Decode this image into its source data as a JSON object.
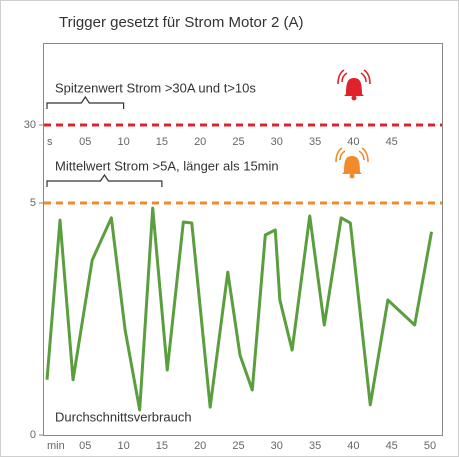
{
  "chart_data": {
    "type": "line",
    "title": "Trigger gesetzt für Strom Motor 2 (A)",
    "xlim": [
      0,
      50
    ],
    "xticks": [
      {
        "value": 0,
        "label": "min"
      },
      {
        "value": 5,
        "label": "05"
      },
      10,
      15,
      20,
      25,
      30,
      35,
      40,
      45,
      50
    ],
    "x2ticks": [
      {
        "value": 0,
        "label": "s"
      },
      {
        "value": 5,
        "label": "05"
      },
      10,
      15,
      20,
      25,
      30,
      35,
      40,
      45
    ],
    "ylim": [
      0,
      56
    ],
    "yticks": [
      0,
      5,
      30
    ],
    "series": [
      {
        "name": "Durchschnittsverbrauch",
        "color": "#5a9e3e",
        "x": [
          0,
          1.7,
          3.4,
          5.9,
          8.4,
          10.2,
          12.1,
          13.8,
          15.7,
          17.8,
          18.9,
          21.3,
          23.6,
          25.2,
          26.8,
          28.5,
          29.8,
          30.4,
          32.0,
          34.3,
          36.2,
          38.4,
          39.6,
          42.2,
          44.5,
          48.0,
          50.2
        ],
        "values": [
          1.19,
          4.63,
          1.19,
          3.77,
          4.68,
          2.26,
          0.54,
          4.89,
          1.4,
          4.59,
          4.57,
          0.6,
          3.51,
          1.72,
          0.97,
          4.31,
          4.42,
          2.91,
          1.83,
          4.72,
          2.37,
          4.68,
          4.57,
          0.65,
          2.91,
          2.37,
          4.38
        ]
      }
    ],
    "thresholds": [
      {
        "value": 30,
        "color": "#e0232a",
        "label": "Spitzenwert Strom >30A und t>10s",
        "span": [
          0,
          10
        ]
      },
      {
        "value": 5,
        "color": "#f18a2a",
        "label": "Mittelwert Strom >5A, länger als 15min",
        "span": [
          0,
          15
        ]
      }
    ]
  }
}
